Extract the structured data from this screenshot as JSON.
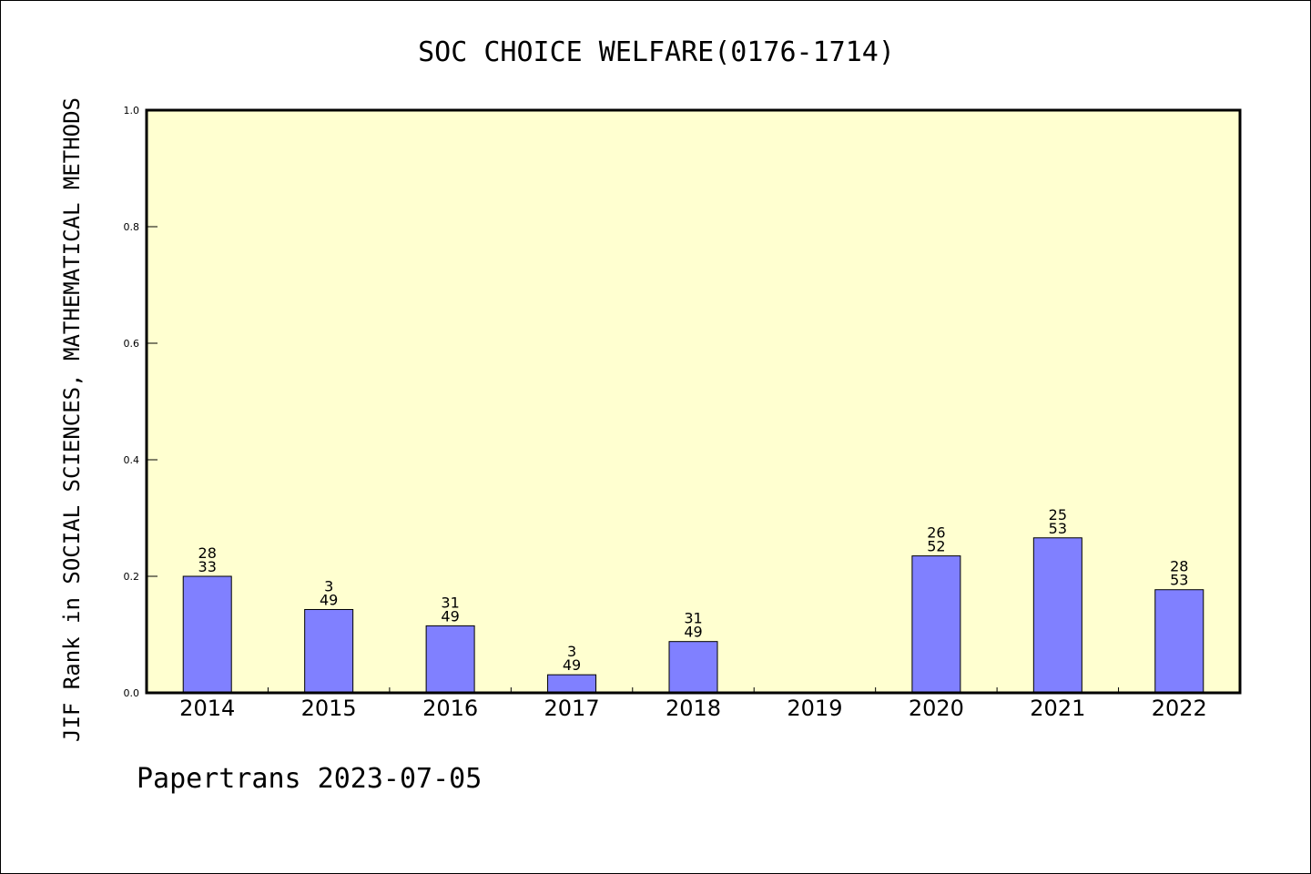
{
  "chart_data": {
    "type": "bar",
    "title": "SOC CHOICE WELFARE(0176-1714)",
    "ylabel": "JIF Rank in SOCIAL SCIENCES, MATHEMATICAL METHODS",
    "xlabel": "",
    "ylim": [
      0,
      1.0
    ],
    "yticks": [
      "0.0",
      "0.2",
      "0.4",
      "0.6",
      "0.8",
      "1.0"
    ],
    "categories": [
      "2014",
      "2015",
      "2016",
      "2017",
      "2018",
      "2019",
      "2020",
      "2021",
      "2022"
    ],
    "values": [
      0.2,
      0.143,
      0.115,
      0.031,
      0.088,
      null,
      0.235,
      0.266,
      0.177
    ],
    "bar_labels": [
      [
        "28",
        "33"
      ],
      [
        "3",
        "49"
      ],
      [
        "31",
        "49"
      ],
      [
        "3",
        "49"
      ],
      [
        "31",
        "49"
      ],
      null,
      [
        "26",
        "52"
      ],
      [
        "25",
        "53"
      ],
      [
        "28",
        "53"
      ]
    ],
    "footer": "Papertrans 2023-07-05",
    "grid": false,
    "colors": {
      "plot_background": "#ffffd0",
      "bar_fill": "#8080ff",
      "bar_stroke": "#000000"
    }
  }
}
